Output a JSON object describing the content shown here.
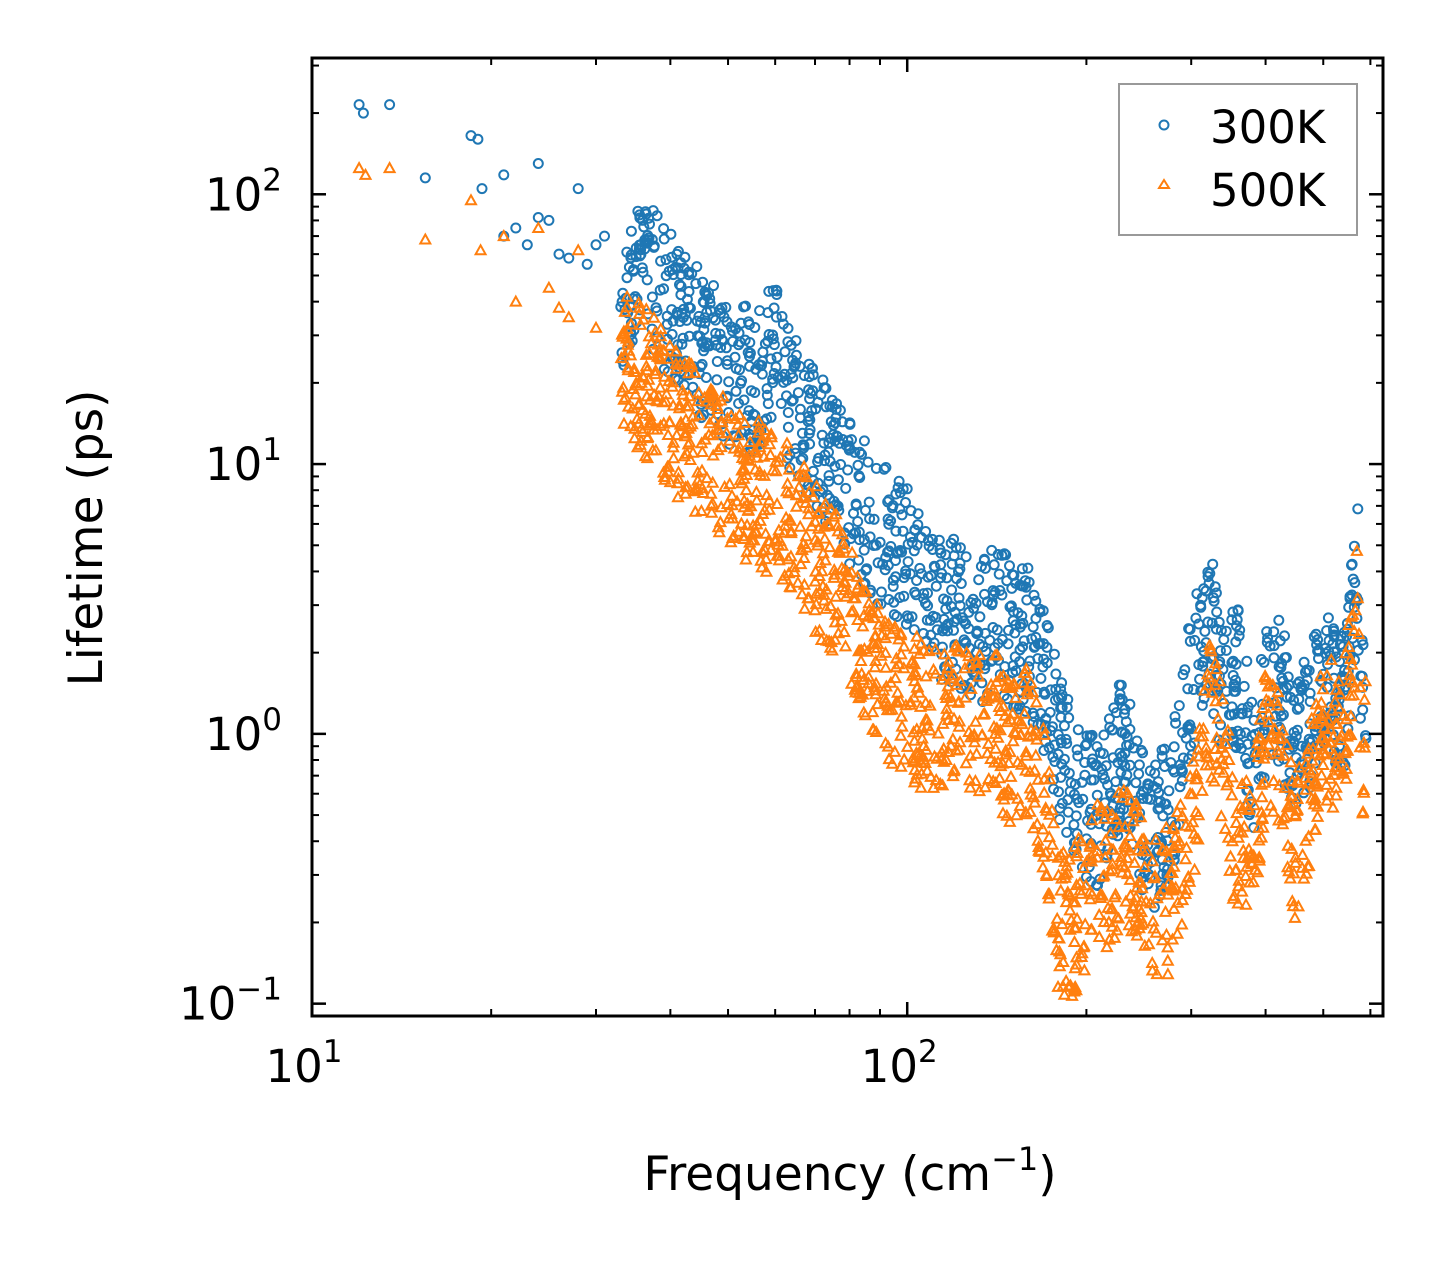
{
  "chart_data": {
    "type": "scatter",
    "title": "",
    "xlabel": "Frequency (cm",
    "xlabel_sup": "−1",
    "xlabel_end": ")",
    "ylabel": "Lifetime (ps)",
    "x_scale": "log",
    "y_scale": "log",
    "xlim": [
      10,
      630
    ],
    "ylim": [
      0.09,
      320
    ],
    "x_ticks": [
      {
        "value": 10,
        "base": "10",
        "exp": "1"
      },
      {
        "value": 100,
        "base": "10",
        "exp": "2"
      }
    ],
    "y_ticks": [
      {
        "value": 0.1,
        "base": "10",
        "exp": "−1"
      },
      {
        "value": 1,
        "base": "10",
        "exp": "0"
      },
      {
        "value": 10,
        "base": "10",
        "exp": "1"
      },
      {
        "value": 100,
        "base": "10",
        "exp": "2"
      }
    ],
    "legend": "top-right",
    "series": [
      {
        "name": "300K",
        "color": "#1f77b4",
        "marker": "circle",
        "anchor_points": [
          [
            12,
            215
          ],
          [
            12.2,
            200
          ],
          [
            13.5,
            215
          ],
          [
            15.5,
            115
          ],
          [
            18.5,
            165
          ],
          [
            19,
            160
          ],
          [
            19.3,
            105
          ],
          [
            21,
            118
          ],
          [
            24,
            130
          ],
          [
            21,
            70
          ],
          [
            22,
            75
          ],
          [
            23,
            65
          ],
          [
            24,
            82
          ],
          [
            25,
            80
          ],
          [
            26,
            60
          ],
          [
            27,
            58
          ],
          [
            28,
            105
          ],
          [
            29,
            55
          ],
          [
            30,
            65
          ],
          [
            31,
            70
          ],
          [
            33,
            40
          ],
          [
            35,
            55
          ],
          [
            38,
            45
          ],
          [
            40,
            40
          ],
          [
            45,
            28
          ],
          [
            50,
            22
          ],
          [
            55,
            20
          ],
          [
            60,
            25
          ],
          [
            65,
            16
          ],
          [
            70,
            12
          ],
          [
            80,
            8
          ],
          [
            90,
            5.5
          ],
          [
            100,
            4.5
          ],
          [
            110,
            3
          ],
          [
            120,
            2.8
          ],
          [
            130,
            2.4
          ],
          [
            140,
            2.6
          ],
          [
            160,
            2.2
          ],
          [
            170,
            1.6
          ],
          [
            180,
            0.9
          ],
          [
            190,
            0.7
          ],
          [
            200,
            0.55
          ],
          [
            210,
            0.5
          ],
          [
            220,
            0.7
          ],
          [
            230,
            0.85
          ],
          [
            240,
            0.7
          ],
          [
            250,
            0.45
          ],
          [
            260,
            0.4
          ],
          [
            280,
            0.6
          ],
          [
            300,
            1.5
          ],
          [
            320,
            2.8
          ],
          [
            340,
            1.4
          ],
          [
            360,
            1.6
          ],
          [
            380,
            0.75
          ],
          [
            400,
            1.3
          ],
          [
            420,
            1.5
          ],
          [
            450,
            0.85
          ],
          [
            500,
            1.6
          ],
          [
            540,
            1.2
          ],
          [
            570,
            4.5
          ],
          [
            580,
            1.5
          ]
        ]
      },
      {
        "name": "500K",
        "color": "#ff7f0e",
        "marker": "triangle",
        "anchor_points": [
          [
            12,
            125
          ],
          [
            12.3,
            118
          ],
          [
            13.5,
            125
          ],
          [
            15.5,
            68
          ],
          [
            18.5,
            95
          ],
          [
            19.2,
            62
          ],
          [
            21,
            70
          ],
          [
            22,
            40
          ],
          [
            24,
            75
          ],
          [
            25,
            45
          ],
          [
            26,
            38
          ],
          [
            27,
            35
          ],
          [
            28,
            62
          ],
          [
            30,
            32
          ],
          [
            33,
            25
          ],
          [
            35,
            22
          ],
          [
            38,
            18
          ],
          [
            40,
            15
          ],
          [
            45,
            12
          ],
          [
            50,
            9
          ],
          [
            55,
            8
          ],
          [
            60,
            7
          ],
          [
            65,
            6
          ],
          [
            70,
            4.5
          ],
          [
            80,
            3
          ],
          [
            90,
            1.5
          ],
          [
            100,
            1.3
          ],
          [
            110,
            1.1
          ],
          [
            120,
            1.2
          ],
          [
            130,
            1.1
          ],
          [
            140,
            1.1
          ],
          [
            150,
            0.8
          ],
          [
            160,
            0.95
          ],
          [
            170,
            0.55
          ],
          [
            180,
            0.2
          ],
          [
            190,
            0.2
          ],
          [
            200,
            0.25
          ],
          [
            210,
            0.3
          ],
          [
            220,
            0.3
          ],
          [
            230,
            0.4
          ],
          [
            250,
            0.25
          ],
          [
            260,
            0.22
          ],
          [
            280,
            0.25
          ],
          [
            300,
            0.45
          ],
          [
            320,
            1.5
          ],
          [
            340,
            0.7
          ],
          [
            360,
            0.35
          ],
          [
            380,
            0.4
          ],
          [
            400,
            0.9
          ],
          [
            420,
            0.85
          ],
          [
            450,
            0.35
          ],
          [
            500,
            1.1
          ],
          [
            540,
            0.9
          ],
          [
            570,
            3.0
          ],
          [
            580,
            0.9
          ]
        ]
      }
    ]
  }
}
